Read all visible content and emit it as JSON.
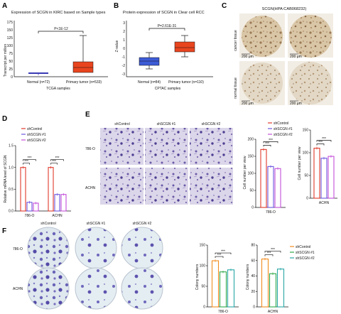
{
  "panels": {
    "a": "A",
    "b": "B",
    "c": "C",
    "d": "D",
    "e": "E",
    "f": "F"
  },
  "panel_a": {
    "title": "Expression of SCGN in KIRC based on Sample types",
    "ylabel": "Transcript per million",
    "xlabel": "TCGA samples",
    "yticks": [
      "0",
      "25",
      "50",
      "75",
      "100",
      "125",
      "150",
      "175"
    ],
    "groups": [
      "Normal (n=72)",
      "Primary tumor (n=533)"
    ],
    "pvalue": "P<1E-12",
    "colors": {
      "normal": "#3b3bb5",
      "tumor": "#e8451f"
    }
  },
  "panel_b": {
    "title": "Protein expression of SCGN in Clear cell RCC",
    "ylabel": "Z-value",
    "xlabel": "CPTAC samples",
    "yticks": [
      "3",
      "2",
      "1",
      "0",
      "-1",
      "-2",
      "-3"
    ],
    "groups": [
      "Normal (n=84)",
      "Primary tumor (n=110)"
    ],
    "pvalue": "P=2.61E-31",
    "colors": {
      "normal": "#3d5bd6",
      "tumor": "#e8451f"
    }
  },
  "panel_c": {
    "title": "SCGN(HPA:CAB068232)",
    "row_labels": [
      "cancer tissue",
      "normal tissue"
    ],
    "scalebar": "200 μm"
  },
  "legend_items": [
    "shControl",
    "shSCGN #1",
    "shSCGN #2"
  ],
  "colors3": [
    "#e0392b",
    "#6d56e0",
    "#c44fd8"
  ],
  "colors3_f": [
    "#f28c1e",
    "#2fa84a",
    "#2aa7a7"
  ],
  "sig": "***",
  "chart_data": [
    {
      "type": "bar",
      "title": "",
      "ylabel": "Relative mRNA level of SCGN",
      "categories": [
        "786-O",
        "ACHN"
      ],
      "ylim": [
        0,
        1.5
      ],
      "yticks": [
        "0.0",
        "0.5",
        "1.0",
        "1.5"
      ],
      "series": [
        {
          "name": "shControl",
          "values": [
            1.0,
            1.0
          ]
        },
        {
          "name": "shSCGN #1",
          "values": [
            0.2,
            0.38
          ]
        },
        {
          "name": "shSCGN #2",
          "values": [
            0.18,
            0.38
          ]
        }
      ]
    },
    {
      "type": "bar",
      "ylabel": "Cell number per view",
      "categories": [
        "786-O"
      ],
      "ylim": [
        0,
        200
      ],
      "yticks": [
        "0",
        "50",
        "100",
        "150",
        "200"
      ],
      "series": [
        {
          "name": "shControl",
          "values": [
            170
          ]
        },
        {
          "name": "shSCGN #1",
          "values": [
            120
          ]
        },
        {
          "name": "shSCGN #2",
          "values": [
            114
          ]
        }
      ]
    },
    {
      "type": "bar",
      "ylabel": "Cell number per view",
      "categories": [
        "ACHN"
      ],
      "ylim": [
        0,
        150
      ],
      "yticks": [
        "0",
        "50",
        "100",
        "150"
      ],
      "series": [
        {
          "name": "shControl",
          "values": [
            110
          ]
        },
        {
          "name": "shSCGN #1",
          "values": [
            88
          ]
        },
        {
          "name": "shSCGN #2",
          "values": [
            92
          ]
        }
      ]
    },
    {
      "type": "bar",
      "ylabel": "Colony numbers",
      "categories": [
        "786-O"
      ],
      "ylim": [
        0,
        150
      ],
      "yticks": [
        "0",
        "50",
        "100",
        "150"
      ],
      "series": [
        {
          "name": "shControl",
          "values": [
            112
          ]
        },
        {
          "name": "shSCGN #1",
          "values": [
            85
          ]
        },
        {
          "name": "shSCGN #2",
          "values": [
            90
          ]
        }
      ]
    },
    {
      "type": "bar",
      "ylabel": "Colony numbers",
      "categories": [
        "ACHN"
      ],
      "ylim": [
        0,
        80
      ],
      "yticks": [
        "0",
        "20",
        "40",
        "60",
        "80"
      ],
      "series": [
        {
          "name": "shControl",
          "values": [
            62
          ]
        },
        {
          "name": "shSCGN #1",
          "values": [
            43
          ]
        },
        {
          "name": "shSCGN #2",
          "values": [
            49
          ]
        }
      ]
    }
  ],
  "panel_e": {
    "col_labels": [
      "shControl",
      "shSCGN #1",
      "shSCGN #2"
    ],
    "row_labels": [
      "786-O",
      "ACHN"
    ]
  },
  "panel_f": {
    "col_labels": [
      "shControl",
      "shSCGN #1",
      "shSCGN #2"
    ],
    "row_labels": [
      "786-O",
      "ACHN"
    ]
  }
}
